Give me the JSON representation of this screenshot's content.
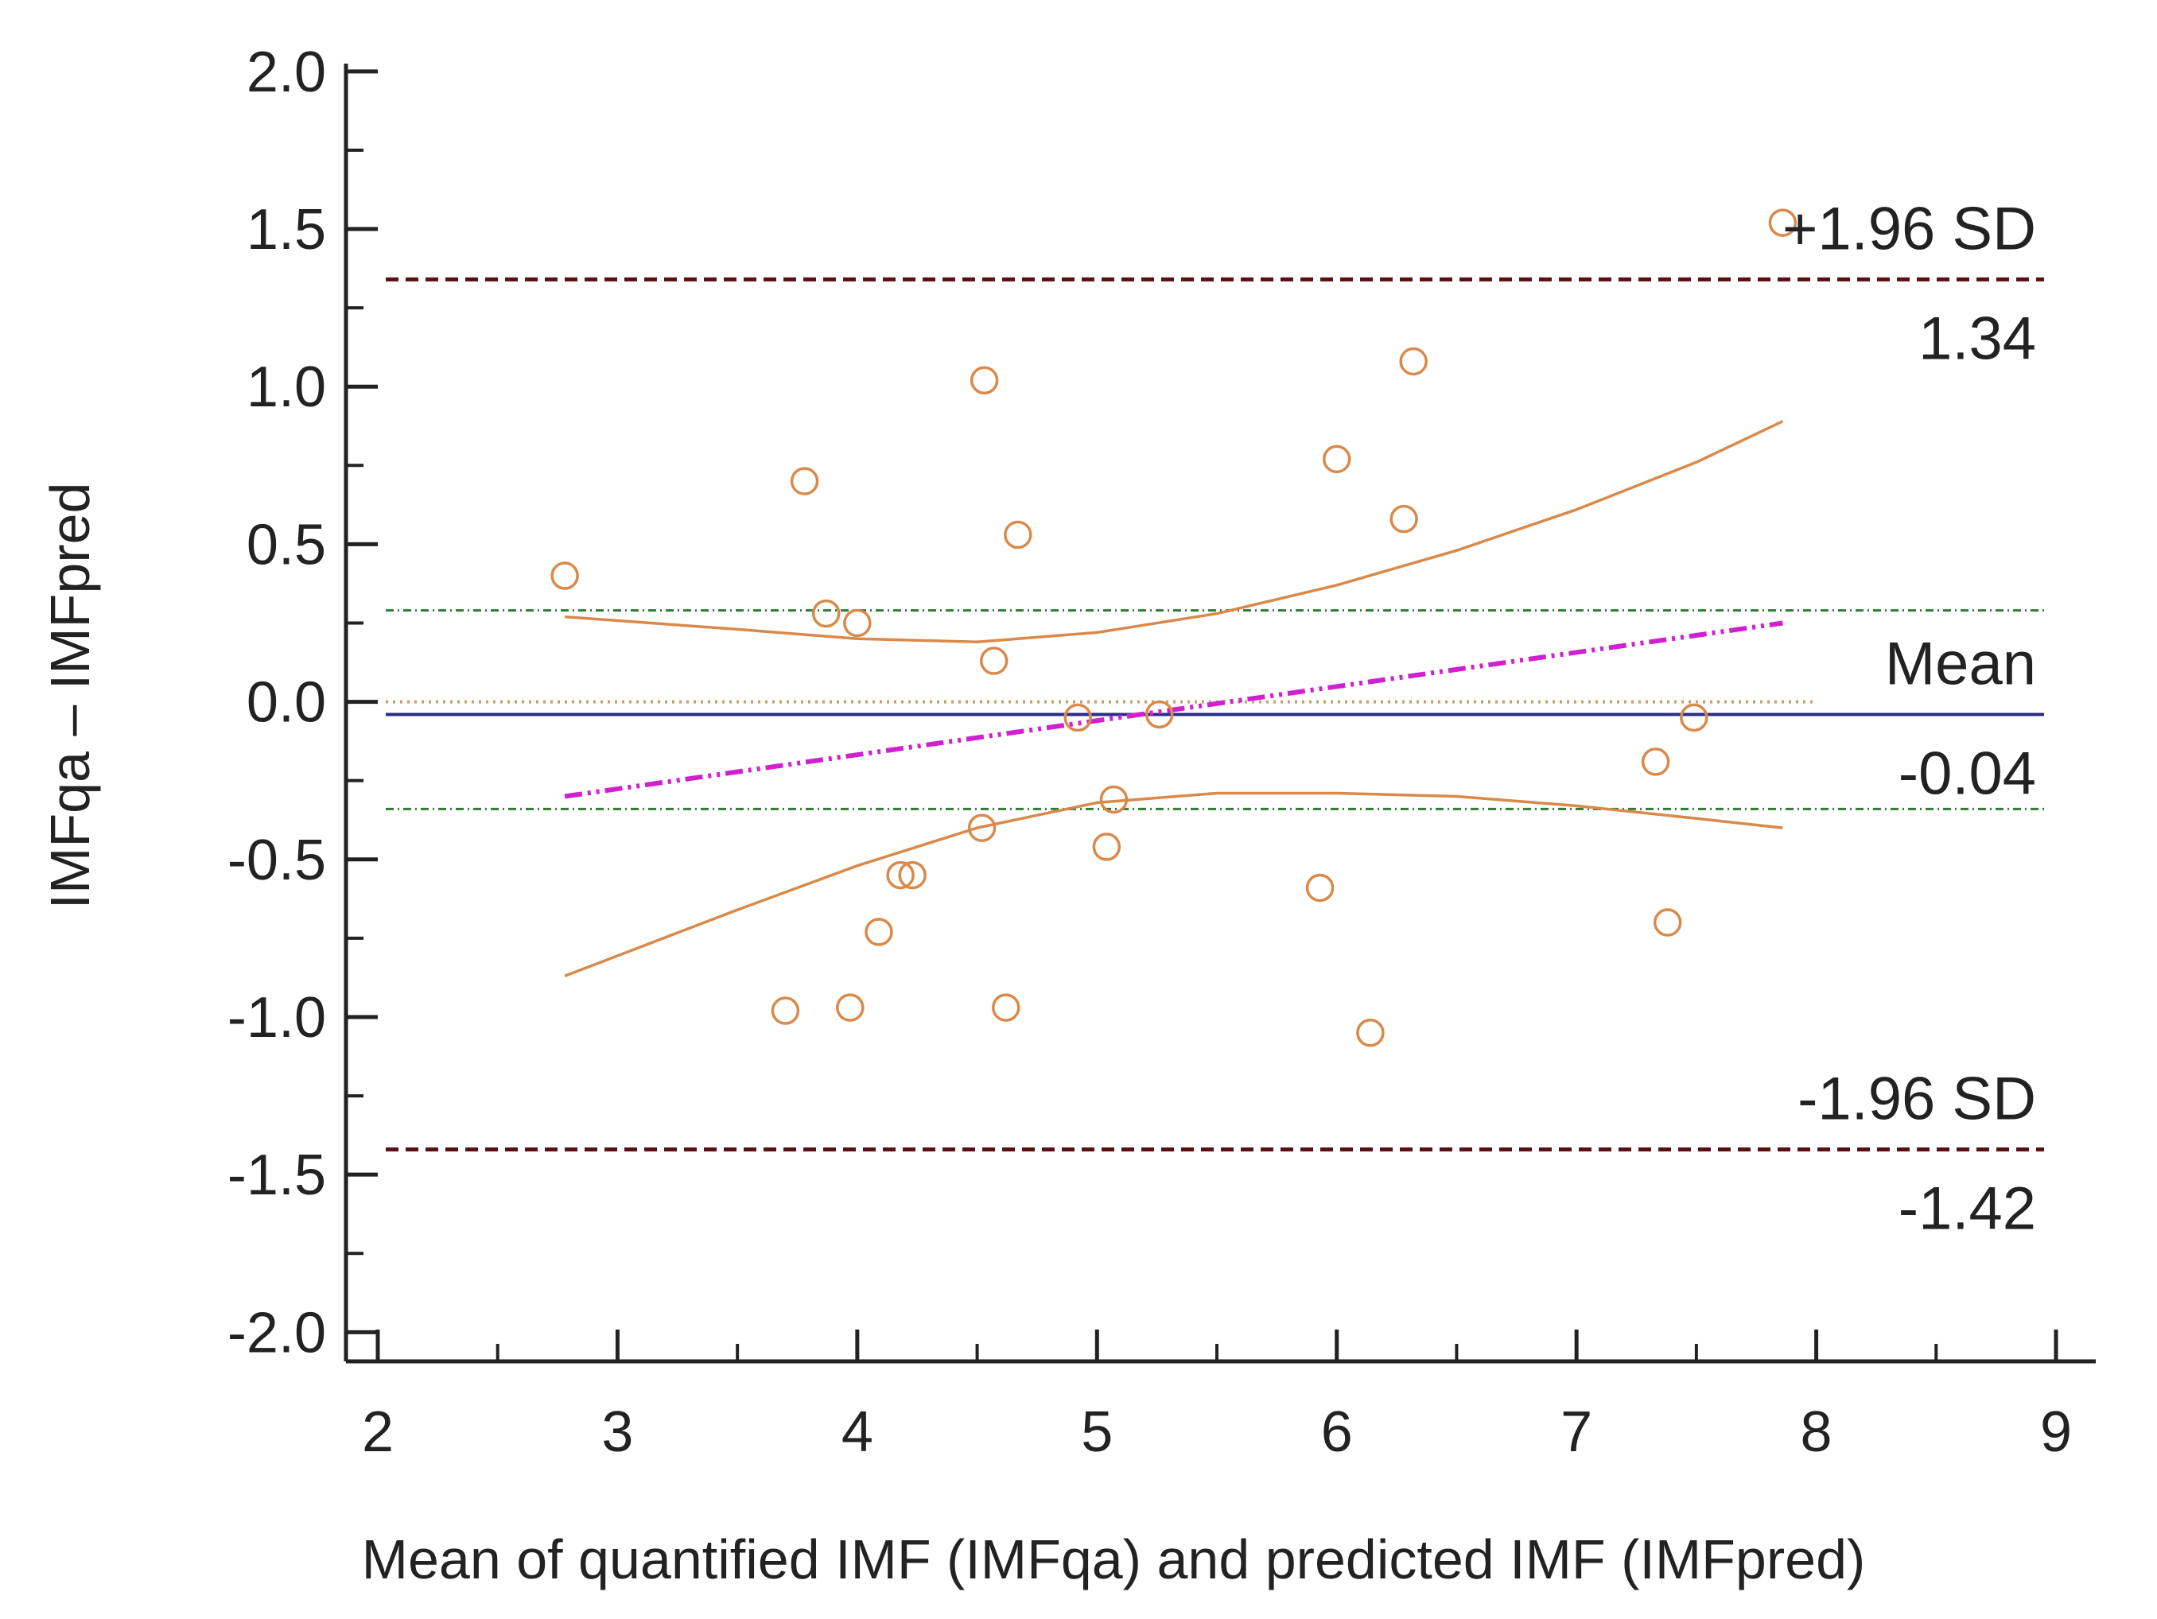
{
  "chart_data": {
    "type": "scatter",
    "title": "",
    "xlabel": "Mean of quantified IMF (IMFqa) and predicted IMF (IMFpred)",
    "ylabel": "IMFqa – IMFpred",
    "xlim": [
      2,
      9
    ],
    "ylim": [
      -2.1,
      2.05
    ],
    "x_ticks": [
      2,
      3,
      4,
      5,
      6,
      7,
      8,
      9
    ],
    "x_tick_labels": [
      "2",
      "3",
      "4",
      "5",
      "6",
      "7",
      "8",
      "9"
    ],
    "y_ticks": [
      2.0,
      1.5,
      1.0,
      0.5,
      0.0,
      -0.5,
      -1.0,
      -1.5,
      -2.0
    ],
    "y_tick_labels": [
      "2.0",
      "1.5",
      "1.0",
      "0.5",
      "0.0",
      "-0.5",
      "-1.0",
      "-1.5",
      "-2.0"
    ],
    "grid": false,
    "points": [
      {
        "x": 2.78,
        "y": 0.4
      },
      {
        "x": 3.7,
        "y": -0.98
      },
      {
        "x": 3.78,
        "y": 0.7
      },
      {
        "x": 3.87,
        "y": 0.28
      },
      {
        "x": 3.97,
        "y": -0.97
      },
      {
        "x": 4.0,
        "y": 0.25
      },
      {
        "x": 4.09,
        "y": -0.73
      },
      {
        "x": 4.18,
        "y": -0.55
      },
      {
        "x": 4.23,
        "y": -0.55
      },
      {
        "x": 4.52,
        "y": -0.4
      },
      {
        "x": 4.53,
        "y": 1.02
      },
      {
        "x": 4.57,
        "y": 0.13
      },
      {
        "x": 4.62,
        "y": -0.97
      },
      {
        "x": 4.67,
        "y": 0.53
      },
      {
        "x": 4.92,
        "y": -0.05
      },
      {
        "x": 5.04,
        "y": -0.46
      },
      {
        "x": 5.07,
        "y": -0.31
      },
      {
        "x": 5.26,
        "y": -0.04
      },
      {
        "x": 5.93,
        "y": -0.59
      },
      {
        "x": 6.0,
        "y": 0.77
      },
      {
        "x": 6.14,
        "y": -1.05
      },
      {
        "x": 6.28,
        "y": 0.58
      },
      {
        "x": 6.32,
        "y": 1.08
      },
      {
        "x": 7.33,
        "y": -0.19
      },
      {
        "x": 7.38,
        "y": -0.7
      },
      {
        "x": 7.49,
        "y": -0.05
      },
      {
        "x": 7.86,
        "y": 1.52
      }
    ],
    "reference_lines": [
      {
        "name": "upper-limit",
        "y": 1.34,
        "label_top": "+1.96 SD",
        "label_bottom": "1.34",
        "style": "dashed",
        "color": "#5a0f14"
      },
      {
        "name": "mean",
        "y": -0.04,
        "label_top": "Mean",
        "label_bottom": "-0.04",
        "style": "solid",
        "color": "#2c2c8a"
      },
      {
        "name": "lower-limit",
        "y": -1.42,
        "label_top": "-1.96 SD",
        "label_bottom": "-1.42",
        "style": "dashed",
        "color": "#5a0f14"
      }
    ],
    "zero_line": {
      "y": 0.0,
      "style": "dotted",
      "color": "#c8a070"
    },
    "mean_ci_lines": {
      "upper": 0.29,
      "lower": -0.34,
      "style": "dash-dot",
      "color": "#2e7d32"
    },
    "regression_line": {
      "x": [
        2.78,
        7.86
      ],
      "y": [
        -0.3,
        0.25
      ],
      "style": "dash-dot-dot",
      "color": "#d020d0"
    },
    "regression_ci_upper": {
      "x": [
        2.78,
        3.5,
        4.0,
        4.5,
        5.0,
        5.5,
        6.0,
        6.5,
        7.0,
        7.5,
        7.86
      ],
      "y": [
        0.27,
        0.23,
        0.2,
        0.19,
        0.22,
        0.28,
        0.37,
        0.48,
        0.61,
        0.76,
        0.89
      ]
    },
    "regression_ci_lower": {
      "x": [
        2.78,
        3.5,
        4.0,
        4.5,
        5.0,
        5.5,
        6.0,
        6.5,
        7.0,
        7.5,
        7.86
      ],
      "y": [
        -0.87,
        -0.66,
        -0.52,
        -0.4,
        -0.32,
        -0.29,
        -0.29,
        -0.3,
        -0.33,
        -0.37,
        -0.4
      ]
    },
    "colors": {
      "points": "#d9894a",
      "ci_curve": "#d9894a",
      "axis": "#222222"
    }
  }
}
